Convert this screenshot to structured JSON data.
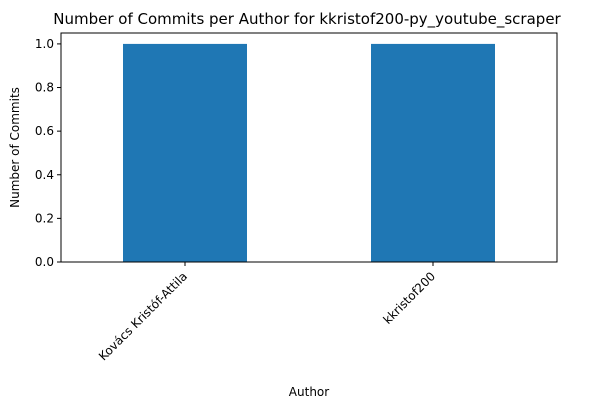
{
  "chart_data": {
    "type": "bar",
    "title": "Number of Commits per Author for kkristof200-py_youtube_scraper",
    "xlabel": "Author",
    "ylabel": "Number of Commits",
    "categories": [
      "Kovács Kristóf-Attila",
      "kkristof200"
    ],
    "values": [
      1,
      1
    ],
    "ylim": [
      0,
      1.05
    ],
    "yticks": [
      "0.0",
      "0.2",
      "0.4",
      "0.6",
      "0.8",
      "1.0"
    ],
    "bar_color": "#1f77b4",
    "grid": false,
    "legend": false
  }
}
